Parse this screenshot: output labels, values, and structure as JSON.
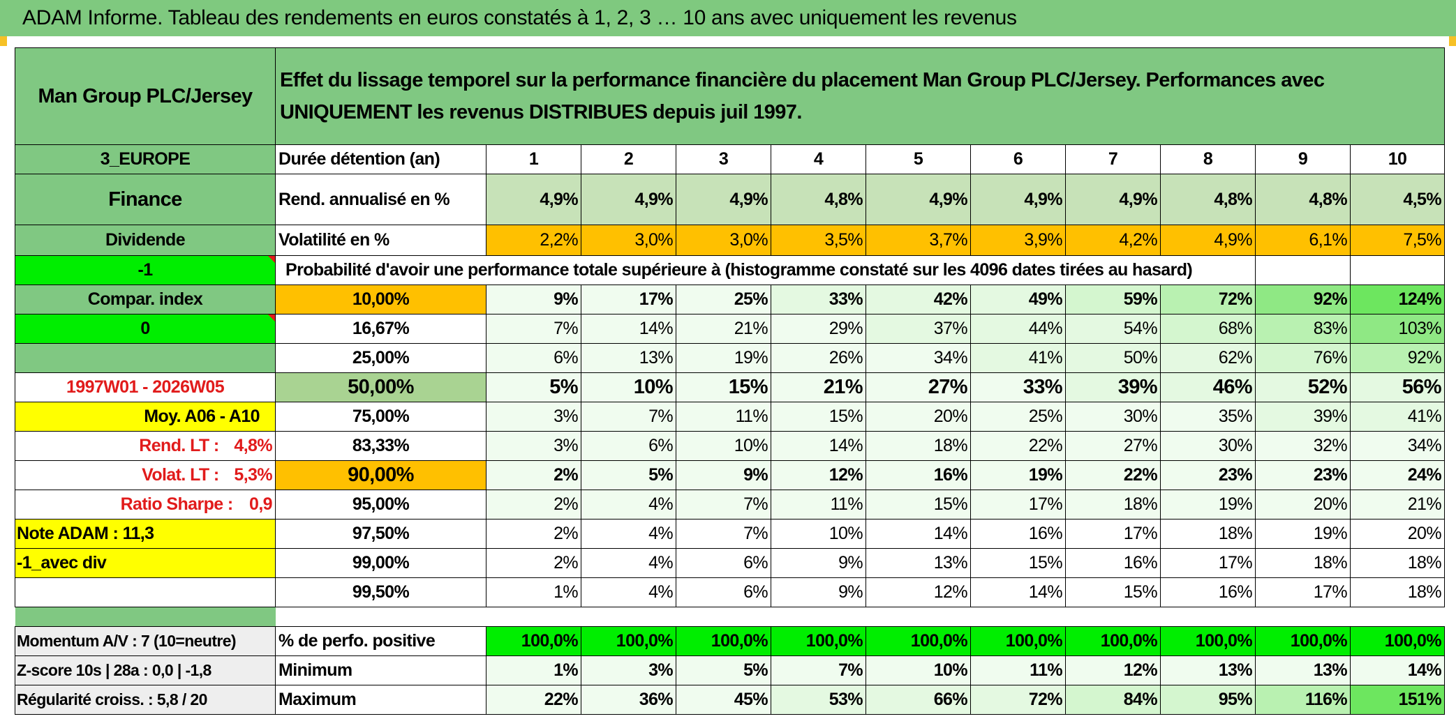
{
  "title": "ADAM Informe. Tableau des rendements en euros constatés à 1, 2, 3 … 10 ans avec uniquement les revenus",
  "fund": {
    "name": "Man Group PLC/Jersey",
    "description": "Effet du lissage temporel sur la performance financière du placement Man Group PLC/Jersey. Performances avec UNIQUEMENT les revenus DISTRIBUES depuis juil 1997.",
    "region": "3_EUROPE",
    "sector": "Finance",
    "type": "Dividende",
    "flag1": "-1",
    "compar_index_label": "Compar. index",
    "flag2": "0",
    "period": "1997W01 - 2026W05",
    "moy_label": "Moy. A06 - A10",
    "rend_lt_label": "Rend. LT :",
    "rend_lt_value": "4,8%",
    "volat_lt_label": "Volat. LT :",
    "volat_lt_value": "5,3%",
    "sharpe_label": "Ratio Sharpe :",
    "sharpe_value": "0,9",
    "note_adam": "Note ADAM : 11,3",
    "avec_div": "-1_avec div",
    "momentum": "Momentum A/V : 7 (10=neutre)",
    "zscore": "Z-score 10s | 28a : 0,0 | -1,8",
    "regularite": "Régularité croiss. : 5,8 / 20"
  },
  "labels": {
    "duree": "Durée détention (an)",
    "rend": "Rend. annualisé en %",
    "volat": "Volatilité en %",
    "prob": "Probabilité d'avoir une performance totale supérieure à (histogramme constaté sur les 4096 dates tirées au hasard)",
    "positive": "% de perfo. positive",
    "minimum": "Minimum",
    "maximum": "Maximum"
  },
  "years": [
    "1",
    "2",
    "3",
    "4",
    "5",
    "6",
    "7",
    "8",
    "9",
    "10"
  ],
  "rend": [
    "4,9%",
    "4,9%",
    "4,9%",
    "4,8%",
    "4,9%",
    "4,9%",
    "4,9%",
    "4,8%",
    "4,8%",
    "4,5%"
  ],
  "volat": [
    "2,2%",
    "3,0%",
    "3,0%",
    "3,5%",
    "3,7%",
    "3,9%",
    "4,2%",
    "4,9%",
    "6,1%",
    "7,5%"
  ],
  "percentiles": [
    {
      "p": "10,00%",
      "values": [
        "9%",
        "17%",
        "25%",
        "33%",
        "42%",
        "49%",
        "59%",
        "72%",
        "92%",
        "124%"
      ]
    },
    {
      "p": "16,67%",
      "values": [
        "7%",
        "14%",
        "21%",
        "29%",
        "37%",
        "44%",
        "54%",
        "68%",
        "83%",
        "103%"
      ]
    },
    {
      "p": "25,00%",
      "values": [
        "6%",
        "13%",
        "19%",
        "26%",
        "34%",
        "41%",
        "50%",
        "62%",
        "76%",
        "92%"
      ]
    },
    {
      "p": "50,00%",
      "values": [
        "5%",
        "10%",
        "15%",
        "21%",
        "27%",
        "33%",
        "39%",
        "46%",
        "52%",
        "56%"
      ]
    },
    {
      "p": "75,00%",
      "values": [
        "3%",
        "7%",
        "11%",
        "15%",
        "20%",
        "25%",
        "30%",
        "35%",
        "39%",
        "41%"
      ]
    },
    {
      "p": "83,33%",
      "values": [
        "3%",
        "6%",
        "10%",
        "14%",
        "18%",
        "22%",
        "27%",
        "30%",
        "32%",
        "34%"
      ]
    },
    {
      "p": "90,00%",
      "values": [
        "2%",
        "5%",
        "9%",
        "12%",
        "16%",
        "19%",
        "22%",
        "23%",
        "23%",
        "24%"
      ]
    },
    {
      "p": "95,00%",
      "values": [
        "2%",
        "4%",
        "7%",
        "11%",
        "15%",
        "17%",
        "18%",
        "19%",
        "20%",
        "21%"
      ]
    },
    {
      "p": "97,50%",
      "values": [
        "2%",
        "4%",
        "7%",
        "10%",
        "14%",
        "16%",
        "17%",
        "18%",
        "19%",
        "20%"
      ]
    },
    {
      "p": "99,00%",
      "values": [
        "2%",
        "4%",
        "6%",
        "9%",
        "13%",
        "15%",
        "16%",
        "17%",
        "18%",
        "18%"
      ]
    },
    {
      "p": "99,50%",
      "values": [
        "1%",
        "4%",
        "6%",
        "9%",
        "12%",
        "14%",
        "15%",
        "16%",
        "17%",
        "18%"
      ]
    }
  ],
  "positive": [
    "100,0%",
    "100,0%",
    "100,0%",
    "100,0%",
    "100,0%",
    "100,0%",
    "100,0%",
    "100,0%",
    "100,0%",
    "100,0%"
  ],
  "minimum": [
    "1%",
    "3%",
    "5%",
    "7%",
    "10%",
    "11%",
    "12%",
    "13%",
    "13%",
    "14%"
  ],
  "maximum": [
    "22%",
    "36%",
    "45%",
    "53%",
    "66%",
    "72%",
    "84%",
    "95%",
    "116%",
    "151%"
  ]
}
